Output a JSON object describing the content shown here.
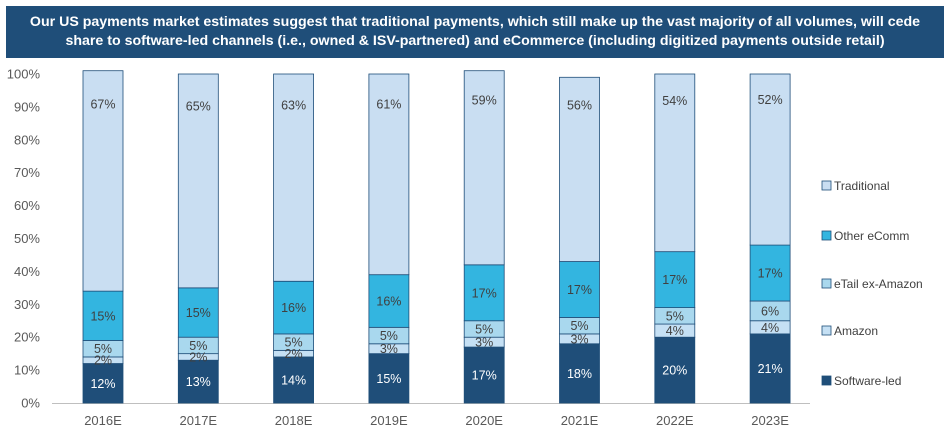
{
  "title": "Our US payments market estimates suggest that traditional payments, which still make up the vast majority of all volumes, will cede share to software-led channels (i.e., owned & ISV-partnered) and eCommerce (including digitized payments outside retail)",
  "chart_data": {
    "type": "bar",
    "stacked": true,
    "categories": [
      "2016E",
      "2017E",
      "2018E",
      "2019E",
      "2020E",
      "2021E",
      "2022E",
      "2023E"
    ],
    "yticks": [
      "0%",
      "10%",
      "20%",
      "30%",
      "40%",
      "50%",
      "60%",
      "70%",
      "80%",
      "90%",
      "100%"
    ],
    "ylim": [
      0,
      100
    ],
    "series": [
      {
        "name": "Software-led",
        "color": "#1f4e79",
        "label_color": "#ffffff",
        "values": [
          12,
          13,
          14,
          15,
          17,
          18,
          20,
          21
        ]
      },
      {
        "name": "Amazon",
        "color": "#c5e0f4",
        "label_color": "#404040",
        "values": [
          2,
          2,
          2,
          3,
          3,
          3,
          4,
          4
        ]
      },
      {
        "name": "eTail ex-Amazon",
        "color": "#a9d8ee",
        "label_color": "#404040",
        "values": [
          5,
          5,
          5,
          5,
          5,
          5,
          5,
          6
        ]
      },
      {
        "name": "Other eComm",
        "color": "#33b5e0",
        "label_color": "#404040",
        "values": [
          15,
          15,
          16,
          16,
          17,
          17,
          17,
          17
        ]
      },
      {
        "name": "Traditional",
        "color": "#c9def2",
        "label_color": "#404040",
        "values": [
          67,
          65,
          63,
          61,
          59,
          56,
          54,
          52
        ]
      }
    ],
    "legend": {
      "position": "right",
      "order": [
        "Traditional",
        "Other eComm",
        "eTail ex-Amazon",
        "Amazon",
        "Software-led"
      ]
    },
    "grid": false
  }
}
